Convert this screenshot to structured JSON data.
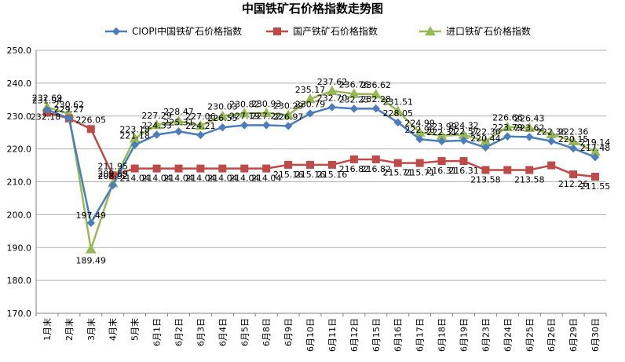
{
  "chart_data": {
    "type": "line",
    "title": "中国铁矿石价格指数走势图",
    "xlabel": "",
    "ylabel": "",
    "ylim": [
      170,
      250
    ],
    "yticks": [
      "170.0",
      "180.0",
      "190.0",
      "200.0",
      "210.0",
      "220.0",
      "230.0",
      "240.0",
      "250.0"
    ],
    "grid": true,
    "legend": "top",
    "categories": [
      "1月末",
      "2月末",
      "3月末",
      "4月末",
      "5月末",
      "6月1日",
      "6月2日",
      "6月3日",
      "6月4日",
      "6月5日",
      "6月8日",
      "6月9日",
      "6月10日",
      "6月11日",
      "6月12日",
      "6月15日",
      "6月16日",
      "6月17日",
      "6月18日",
      "6月19日",
      "6月23日",
      "6月24日",
      "6月25日",
      "6月26日",
      "6月29日",
      "6月30日"
    ],
    "series": [
      {
        "name": "CIOPI中国铁矿石价格指数",
        "color": "#4a7ebb",
        "marker": "diamond",
        "values": [
          231.94,
          229.27,
          197.49,
          208.92,
          221.18,
          224.33,
          225.31,
          224.21,
          226.55,
          227.19,
          227.22,
          226.97,
          230.79,
          232.7,
          232.23,
          232.28,
          228.05,
          222.96,
          222.31,
          222.57,
          220.44,
          223.79,
          223.62,
          222.36,
          220.15,
          217.48
        ],
        "labels": [
          "231.94",
          "229.27",
          "197.49",
          "208.92",
          "221.18",
          "224.33",
          "225.31",
          "224.21",
          "226.55",
          "227.19",
          "227.22",
          "226.97",
          "230.79",
          "232.70",
          "232.23",
          "232.28",
          "228.05",
          "222.96",
          "222.31",
          "222.57",
          "220.44",
          "223.79",
          "223.62",
          "222.36",
          "220.15",
          "217.48"
        ]
      },
      {
        "name": "国产铁矿石价格指数",
        "color": "#be4b48",
        "marker": "square",
        "values": [
          231.0,
          229.27,
          226.05,
          211.95,
          214.04,
          214.04,
          214.04,
          214.04,
          214.04,
          214.04,
          214.04,
          215.16,
          215.16,
          215.16,
          216.82,
          216.82,
          215.71,
          215.71,
          216.31,
          216.31,
          213.58,
          213.58,
          213.58,
          215.0,
          212.26,
          211.55
        ],
        "labels": [
          "",
          "",
          "226.05",
          "211.95",
          "214.04",
          "214.04",
          "214.04",
          "214.04",
          "214.04",
          "214.04",
          "214.04",
          "215.16",
          "215.16",
          "215.16",
          "216.82",
          "216.82",
          "215.71",
          "215.71",
          "216.31",
          "216.31",
          "213.58",
          "",
          "213.58",
          "",
          "212.26",
          "211.55"
        ]
      },
      {
        "name": "进口铁矿石价格指数",
        "color": "#98b954",
        "marker": "triangle",
        "values": [
          232.69,
          230.62,
          189.49,
          209.59,
          223.18,
          227.29,
          228.47,
          227.06,
          230.03,
          230.82,
          230.93,
          230.29,
          235.17,
          237.62,
          236.76,
          236.62,
          231.51,
          224.99,
          223.99,
          224.32,
          222.36,
          226.66,
          226.43,
          224.5,
          222.36,
          219.14
        ],
        "labels": [
          "232.69",
          "230.62",
          "189.49",
          "209.59",
          "223.18",
          "227.29",
          "228.47",
          "227.06",
          "230.03",
          "230.82",
          "230.93",
          "230.29",
          "235.17",
          "237.62",
          "236.76",
          "236.62",
          "231.51",
          "224.99",
          "223.99",
          "224.32",
          "222.36",
          "226.66",
          "226.43",
          "",
          "222.36",
          "219.14"
        ]
      }
    ],
    "extra_labels": [
      "232.18"
    ]
  }
}
